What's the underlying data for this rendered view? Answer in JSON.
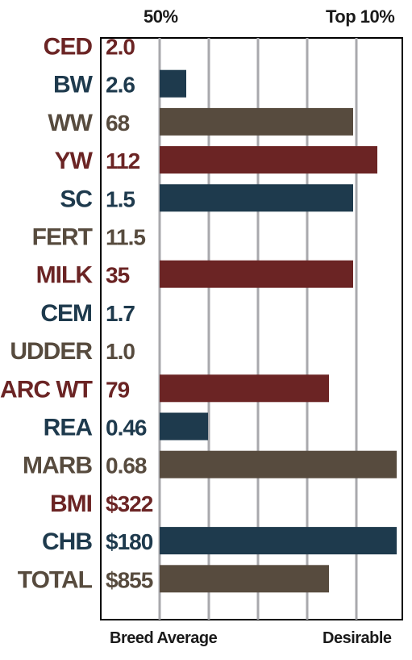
{
  "header": {
    "left_label": "50%",
    "right_label": "Top 10%"
  },
  "footer": {
    "left_label": "Breed Average",
    "right_label": "Desirable"
  },
  "colors": {
    "maroon": "#6b2424",
    "navy": "#1e3a4d",
    "brown": "#574b3e",
    "grid": "#a9a9ad"
  },
  "chart_data": {
    "type": "bar",
    "orientation": "horizontal",
    "x_range": [
      "Breed Average",
      "Desirable"
    ],
    "grid": true,
    "categories": [
      "CED",
      "BW",
      "WW",
      "YW",
      "SC",
      "FERT",
      "MILK",
      "CEM",
      "UDDER",
      "CARC WT",
      "REA",
      "MARB",
      "BMI",
      "CHB",
      "TOTAL"
    ],
    "value_labels": [
      "2.0",
      "2.6",
      "68",
      "112",
      "1.5",
      "11.5",
      "35",
      "1.7",
      "1.0",
      "79",
      "0.46",
      "0.68",
      "$322",
      "$180",
      "$855"
    ],
    "values": [
      0,
      0.11,
      0.8,
      0.9,
      0.8,
      0,
      0.8,
      0,
      0,
      0.7,
      0.2,
      0.98,
      0,
      0.98,
      0.7
    ],
    "color_keys": [
      "maroon",
      "navy",
      "brown",
      "maroon",
      "navy",
      "brown",
      "maroon",
      "navy",
      "brown",
      "maroon",
      "navy",
      "brown",
      "maroon",
      "navy",
      "brown"
    ]
  }
}
